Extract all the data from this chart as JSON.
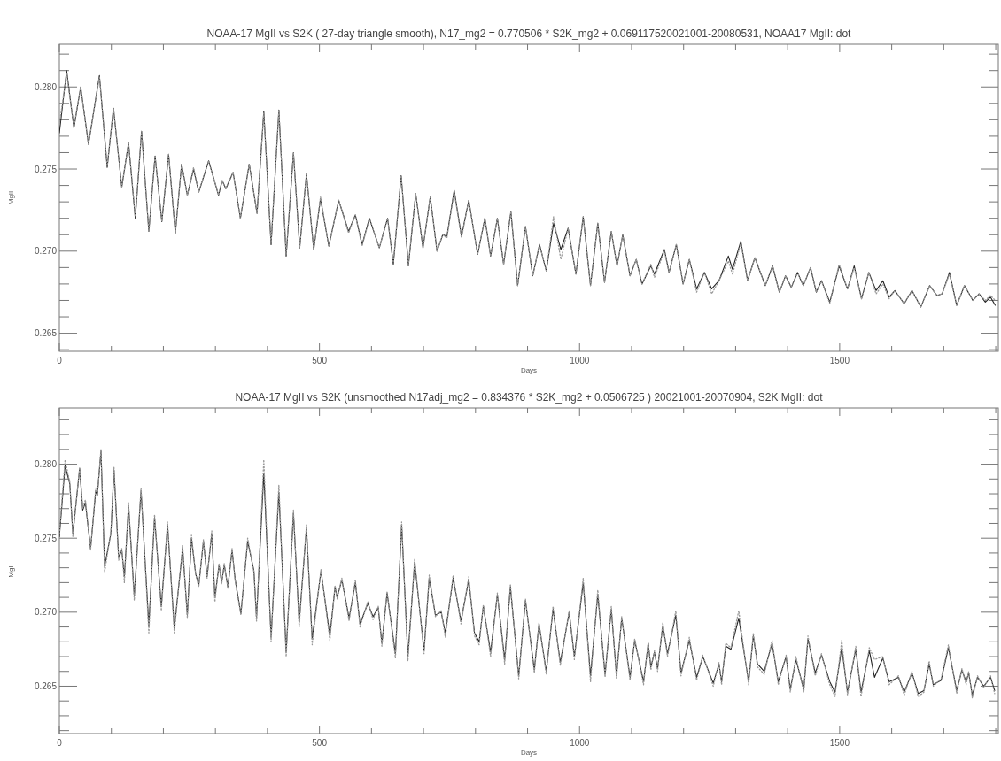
{
  "chart_data": [
    {
      "type": "line",
      "title": "NOAA-17 MgII vs S2K ( 27-day triangle smooth), N17_mg2 = 0.770506 * S2K_mg2 + 0.069117520021001-20080531, NOAA17 MgII: dot",
      "xlabel": "Days",
      "ylabel": "MgII",
      "marker": "none",
      "xlim": [
        0,
        1805
      ],
      "xticks": [
        0,
        {
          "value": 100,
          "label": null
        },
        {
          "value": 200,
          "label": null
        },
        {
          "value": 300,
          "label": null
        },
        {
          "value": 400,
          "label": null
        },
        500,
        {
          "value": 600,
          "label": null
        },
        {
          "value": 700,
          "label": null
        },
        {
          "value": 800,
          "label": null
        },
        {
          "value": 900,
          "label": null
        },
        1000,
        {
          "value": 1100,
          "label": null
        },
        {
          "value": 1200,
          "label": null
        },
        {
          "value": 1300,
          "label": null
        },
        {
          "value": 1400,
          "label": null
        },
        1500,
        {
          "value": 1600,
          "label": null
        },
        {
          "value": 1700,
          "label": null
        },
        {
          "value": 1800,
          "label": null
        }
      ],
      "ylim": [
        0.2639,
        0.2826
      ],
      "yticks": [
        {
          "value": 0.264,
          "label": null
        },
        {
          "value": 0.265,
          "label": "0.265"
        },
        {
          "value": 0.266,
          "label": null
        },
        {
          "value": 0.267,
          "label": null
        },
        {
          "value": 0.268,
          "label": null
        },
        {
          "value": 0.269,
          "label": null
        },
        {
          "value": 0.27,
          "label": "0.270"
        },
        {
          "value": 0.271,
          "label": null
        },
        {
          "value": 0.272,
          "label": null
        },
        {
          "value": 0.273,
          "label": null
        },
        {
          "value": 0.274,
          "label": null
        },
        {
          "value": 0.275,
          "label": "0.275"
        },
        {
          "value": 0.276,
          "label": null
        },
        {
          "value": 0.277,
          "label": null
        },
        {
          "value": 0.278,
          "label": null
        },
        {
          "value": 0.279,
          "label": null
        },
        {
          "value": 0.28,
          "label": "0.280"
        },
        {
          "value": 0.281,
          "label": null
        },
        {
          "value": 0.282,
          "label": null
        }
      ],
      "x": [
        0,
        14,
        28,
        41,
        56,
        77,
        92,
        104,
        120,
        133,
        146,
        158,
        172,
        184,
        197,
        210,
        223,
        235,
        246,
        258,
        268,
        287,
        306,
        313,
        320,
        334,
        348,
        365,
        380,
        393,
        407,
        422,
        436,
        450,
        462,
        475,
        489,
        502,
        518,
        537,
        556,
        569,
        582,
        596,
        615,
        631,
        642,
        657,
        671,
        685,
        699,
        713,
        726,
        737,
        745,
        759,
        773,
        787,
        804,
        818,
        829,
        842,
        854,
        868,
        881,
        896,
        910,
        923,
        936,
        950,
        964,
        978,
        993,
        1007,
        1021,
        1035,
        1048,
        1061,
        1072,
        1083,
        1097,
        1109,
        1120,
        1137,
        1144,
        1163,
        1172,
        1186,
        1199,
        1211,
        1225,
        1240,
        1254,
        1268,
        1286,
        1294,
        1310,
        1323,
        1337,
        1357,
        1371,
        1384,
        1396,
        1407,
        1419,
        1430,
        1444,
        1455,
        1465,
        1481,
        1499,
        1515,
        1528,
        1542,
        1556,
        1570,
        1583,
        1595,
        1606,
        1624,
        1639,
        1656,
        1673,
        1687,
        1697,
        1711,
        1725,
        1740,
        1756,
        1768,
        1780,
        1790,
        1799
      ],
      "series": [
        {
          "color": "#222222",
          "line_style": "solid",
          "values": [
            0.2772,
            0.281,
            0.2775,
            0.28,
            0.2765,
            0.2807,
            0.2751,
            0.2787,
            0.2739,
            0.2766,
            0.272,
            0.2773,
            0.2712,
            0.2758,
            0.2718,
            0.2759,
            0.2711,
            0.2753,
            0.2734,
            0.275,
            0.2736,
            0.2755,
            0.2734,
            0.2743,
            0.2738,
            0.2748,
            0.272,
            0.2753,
            0.2723,
            0.2785,
            0.2704,
            0.2786,
            0.2697,
            0.276,
            0.2702,
            0.2747,
            0.2701,
            0.2732,
            0.2703,
            0.2731,
            0.2712,
            0.2722,
            0.2704,
            0.272,
            0.2702,
            0.272,
            0.2692,
            0.2746,
            0.2691,
            0.2735,
            0.2702,
            0.2733,
            0.27,
            0.271,
            0.2709,
            0.2737,
            0.2709,
            0.2731,
            0.2698,
            0.272,
            0.2697,
            0.272,
            0.2692,
            0.2724,
            0.2679,
            0.2715,
            0.2685,
            0.2704,
            0.2688,
            0.2717,
            0.2701,
            0.2714,
            0.2686,
            0.2721,
            0.2679,
            0.2717,
            0.2681,
            0.2712,
            0.2691,
            0.271,
            0.2685,
            0.2695,
            0.268,
            0.2691,
            0.2686,
            0.2701,
            0.2687,
            0.2704,
            0.268,
            0.2695,
            0.2677,
            0.2687,
            0.2677,
            0.2682,
            0.2697,
            0.2689,
            0.2706,
            0.2682,
            0.2696,
            0.2679,
            0.2691,
            0.2675,
            0.2685,
            0.2678,
            0.2687,
            0.2679,
            0.269,
            0.2675,
            0.2682,
            0.2669,
            0.2691,
            0.2677,
            0.2691,
            0.2671,
            0.2687,
            0.2676,
            0.2682,
            0.2672,
            0.2676,
            0.2668,
            0.2676,
            0.2666,
            0.2679,
            0.2673,
            0.2674,
            0.2687,
            0.2667,
            0.2679,
            0.267,
            0.2674,
            0.2669,
            0.2672,
            0.2667
          ]
        },
        {
          "color": "#999999",
          "line_style": "dotted",
          "values": [
            0.2777,
            0.2808,
            0.2776,
            0.28,
            0.2765,
            0.2806,
            0.2752,
            0.2787,
            0.2739,
            0.2766,
            0.2721,
            0.2773,
            0.2712,
            0.2758,
            0.2718,
            0.2759,
            0.2711,
            0.2753,
            0.2734,
            0.2751,
            0.2736,
            0.2755,
            0.2734,
            0.2743,
            0.2738,
            0.2748,
            0.272,
            0.2753,
            0.2723,
            0.2784,
            0.2705,
            0.2786,
            0.2698,
            0.276,
            0.2702,
            0.2747,
            0.2701,
            0.2733,
            0.2703,
            0.2731,
            0.2711,
            0.2722,
            0.2703,
            0.272,
            0.2702,
            0.272,
            0.2693,
            0.2746,
            0.2692,
            0.2735,
            0.2702,
            0.2733,
            0.27,
            0.271,
            0.2708,
            0.2736,
            0.2708,
            0.2731,
            0.2698,
            0.272,
            0.2697,
            0.272,
            0.2692,
            0.2724,
            0.2679,
            0.2715,
            0.2685,
            0.2704,
            0.2688,
            0.2721,
            0.2695,
            0.2714,
            0.2686,
            0.2721,
            0.2679,
            0.2717,
            0.2681,
            0.2712,
            0.2691,
            0.271,
            0.2685,
            0.2695,
            0.268,
            0.2692,
            0.2684,
            0.27,
            0.2687,
            0.2704,
            0.268,
            0.2695,
            0.2675,
            0.2687,
            0.2674,
            0.2682,
            0.2694,
            0.2686,
            0.2705,
            0.2682,
            0.2696,
            0.2679,
            0.2691,
            0.2675,
            0.2685,
            0.2678,
            0.2687,
            0.2679,
            0.269,
            0.2675,
            0.2682,
            0.2668,
            0.2692,
            0.2677,
            0.269,
            0.2671,
            0.2687,
            0.2674,
            0.268,
            0.2671,
            0.2676,
            0.2668,
            0.2676,
            0.2666,
            0.2679,
            0.2673,
            0.2674,
            0.2686,
            0.2667,
            0.2679,
            0.267,
            0.2674,
            0.267,
            0.2673,
            0.267
          ]
        }
      ]
    },
    {
      "type": "line",
      "title": "NOAA-17 MgII vs S2K (unsmoothed N17adj_mg2 = 0.834376 * S2K_mg2 + 0.0506725 ) 20021001-20070904, S2K MgII: dot",
      "xlabel": "Days",
      "ylabel": "MgII",
      "marker": "none",
      "xlim": [
        0,
        1805
      ],
      "xticks": [
        0,
        {
          "value": 100,
          "label": null
        },
        {
          "value": 200,
          "label": null
        },
        {
          "value": 300,
          "label": null
        },
        {
          "value": 400,
          "label": null
        },
        500,
        {
          "value": 600,
          "label": null
        },
        {
          "value": 700,
          "label": null
        },
        {
          "value": 800,
          "label": null
        },
        {
          "value": 900,
          "label": null
        },
        1000,
        {
          "value": 1100,
          "label": null
        },
        {
          "value": 1200,
          "label": null
        },
        {
          "value": 1300,
          "label": null
        },
        {
          "value": 1400,
          "label": null
        },
        1500,
        {
          "value": 1600,
          "label": null
        },
        {
          "value": 1700,
          "label": null
        },
        {
          "value": 1800,
          "label": null
        }
      ],
      "ylim": [
        0.2618,
        0.2838
      ],
      "yticks": [
        {
          "value": 0.262,
          "label": null
        },
        {
          "value": 0.263,
          "label": null
        },
        {
          "value": 0.264,
          "label": null
        },
        {
          "value": 0.265,
          "label": "0.265"
        },
        {
          "value": 0.266,
          "label": null
        },
        {
          "value": 0.267,
          "label": null
        },
        {
          "value": 0.268,
          "label": null
        },
        {
          "value": 0.269,
          "label": null
        },
        {
          "value": 0.27,
          "label": "0.270"
        },
        {
          "value": 0.271,
          "label": null
        },
        {
          "value": 0.272,
          "label": null
        },
        {
          "value": 0.273,
          "label": null
        },
        {
          "value": 0.274,
          "label": null
        },
        {
          "value": 0.275,
          "label": "0.275"
        },
        {
          "value": 0.276,
          "label": null
        },
        {
          "value": 0.277,
          "label": null
        },
        {
          "value": 0.278,
          "label": null
        },
        {
          "value": 0.279,
          "label": null
        },
        {
          "value": 0.28,
          "label": "0.280"
        },
        {
          "value": 0.281,
          "label": null
        },
        {
          "value": 0.282,
          "label": null
        },
        {
          "value": 0.283,
          "label": null
        }
      ],
      "x": [
        0,
        11,
        20,
        26,
        39,
        45,
        50,
        60,
        70,
        73,
        80,
        87,
        99,
        105,
        114,
        120,
        125,
        133,
        144,
        157,
        172,
        183,
        196,
        208,
        221,
        237,
        246,
        254,
        262,
        268,
        277,
        284,
        293,
        299,
        307,
        312,
        317,
        324,
        332,
        338,
        349,
        362,
        374,
        379,
        393,
        407,
        422,
        436,
        450,
        461,
        475,
        486,
        503,
        520,
        530,
        534,
        543,
        557,
        569,
        578,
        593,
        603,
        613,
        620,
        630,
        646,
        658,
        670,
        683,
        701,
        711,
        723,
        734,
        742,
        757,
        772,
        787,
        798,
        807,
        815,
        829,
        842,
        856,
        867,
        883,
        896,
        913,
        922,
        936,
        949,
        963,
        980,
        990,
        1007,
        1021,
        1035,
        1049,
        1061,
        1071,
        1081,
        1097,
        1106,
        1123,
        1132,
        1137,
        1144,
        1150,
        1160,
        1169,
        1185,
        1195,
        1211,
        1225,
        1237,
        1257,
        1268,
        1273,
        1281,
        1291,
        1306,
        1325,
        1334,
        1342,
        1355,
        1370,
        1382,
        1397,
        1405,
        1416,
        1431,
        1439,
        1453,
        1465,
        1481,
        1491,
        1504,
        1515,
        1531,
        1541,
        1557,
        1567,
        1583,
        1595,
        1613,
        1624,
        1639,
        1651,
        1662,
        1672,
        1680,
        1695,
        1709,
        1725,
        1735,
        1743,
        1748,
        1755,
        1765,
        1777,
        1790,
        1798
      ],
      "series": [
        {
          "color": "#222222",
          "line_style": "solid",
          "values": [
            0.2751,
            0.2799,
            0.2787,
            0.2753,
            0.2797,
            0.2769,
            0.2774,
            0.2743,
            0.2782,
            0.2779,
            0.2809,
            0.2731,
            0.2753,
            0.2796,
            0.2737,
            0.2742,
            0.2724,
            0.2772,
            0.2711,
            0.2782,
            0.2691,
            0.2764,
            0.2704,
            0.2759,
            0.2689,
            0.2743,
            0.2698,
            0.275,
            0.2726,
            0.2718,
            0.2748,
            0.2724,
            0.2753,
            0.271,
            0.2732,
            0.272,
            0.2732,
            0.2717,
            0.2742,
            0.2722,
            0.2699,
            0.2748,
            0.2728,
            0.2696,
            0.2794,
            0.2683,
            0.2781,
            0.2673,
            0.2767,
            0.2693,
            0.2757,
            0.2682,
            0.2728,
            0.2684,
            0.2717,
            0.271,
            0.2722,
            0.2696,
            0.272,
            0.2692,
            0.2706,
            0.2697,
            0.2703,
            0.2679,
            0.2713,
            0.2672,
            0.2759,
            0.267,
            0.2734,
            0.2674,
            0.2723,
            0.2698,
            0.27,
            0.2686,
            0.2723,
            0.2694,
            0.2722,
            0.2686,
            0.268,
            0.2704,
            0.2673,
            0.2712,
            0.2668,
            0.2717,
            0.2657,
            0.2708,
            0.2661,
            0.2692,
            0.266,
            0.2702,
            0.2666,
            0.27,
            0.267,
            0.272,
            0.2657,
            0.2712,
            0.2658,
            0.2702,
            0.2657,
            0.2696,
            0.2656,
            0.2681,
            0.2653,
            0.2679,
            0.2663,
            0.2673,
            0.2662,
            0.2691,
            0.2672,
            0.2698,
            0.2659,
            0.2681,
            0.2656,
            0.267,
            0.2652,
            0.2665,
            0.2653,
            0.2677,
            0.2675,
            0.2696,
            0.2653,
            0.2684,
            0.2665,
            0.266,
            0.2679,
            0.2653,
            0.267,
            0.2648,
            0.2668,
            0.2648,
            0.2682,
            0.2659,
            0.2671,
            0.2653,
            0.2646,
            0.2676,
            0.2646,
            0.2675,
            0.2646,
            0.2674,
            0.2656,
            0.2669,
            0.2653,
            0.2656,
            0.2646,
            0.2659,
            0.2645,
            0.2647,
            0.2665,
            0.2651,
            0.2654,
            0.2676,
            0.2647,
            0.2661,
            0.2653,
            0.2659,
            0.2644,
            0.2656,
            0.265,
            0.2656,
            0.2647
          ]
        },
        {
          "color": "#999999",
          "line_style": "dotted",
          "values": [
            0.2753,
            0.2803,
            0.2788,
            0.2751,
            0.2798,
            0.277,
            0.2776,
            0.2742,
            0.2784,
            0.2779,
            0.281,
            0.2727,
            0.2754,
            0.2798,
            0.2735,
            0.2743,
            0.272,
            0.2774,
            0.2708,
            0.2784,
            0.2686,
            0.2766,
            0.2701,
            0.2761,
            0.2686,
            0.2745,
            0.2696,
            0.2752,
            0.2726,
            0.2717,
            0.2749,
            0.2723,
            0.2755,
            0.2707,
            0.2733,
            0.2719,
            0.2733,
            0.2716,
            0.2743,
            0.2721,
            0.2698,
            0.275,
            0.2727,
            0.2694,
            0.2803,
            0.268,
            0.2786,
            0.267,
            0.2769,
            0.269,
            0.2759,
            0.2678,
            0.2729,
            0.2681,
            0.2718,
            0.2709,
            0.2723,
            0.2694,
            0.2722,
            0.269,
            0.2707,
            0.2695,
            0.2704,
            0.2677,
            0.2714,
            0.2669,
            0.2761,
            0.2667,
            0.2736,
            0.2672,
            0.2725,
            0.2697,
            0.2701,
            0.2683,
            0.2725,
            0.2692,
            0.2724,
            0.2684,
            0.2678,
            0.2705,
            0.267,
            0.2713,
            0.2665,
            0.2719,
            0.2655,
            0.2709,
            0.2659,
            0.2693,
            0.2658,
            0.2704,
            0.2664,
            0.2701,
            0.2668,
            0.2723,
            0.2653,
            0.2715,
            0.2656,
            0.2704,
            0.2655,
            0.2697,
            0.2654,
            0.2682,
            0.2651,
            0.268,
            0.2661,
            0.2674,
            0.266,
            0.2693,
            0.267,
            0.2701,
            0.2657,
            0.2683,
            0.2654,
            0.2671,
            0.265,
            0.2666,
            0.2651,
            0.2679,
            0.2676,
            0.2701,
            0.2651,
            0.2686,
            0.2663,
            0.2658,
            0.2681,
            0.2651,
            0.2671,
            0.2646,
            0.267,
            0.2646,
            0.2684,
            0.2657,
            0.2672,
            0.2651,
            0.2643,
            0.2681,
            0.2644,
            0.2677,
            0.2643,
            0.2676,
            0.2668,
            0.267,
            0.2651,
            0.2657,
            0.2644,
            0.266,
            0.2643,
            0.2646,
            0.2667,
            0.265,
            0.2655,
            0.2678,
            0.2645,
            0.2662,
            0.2651,
            0.266,
            0.2642,
            0.2657,
            0.2649,
            0.2657,
            0.2645
          ]
        }
      ]
    }
  ]
}
